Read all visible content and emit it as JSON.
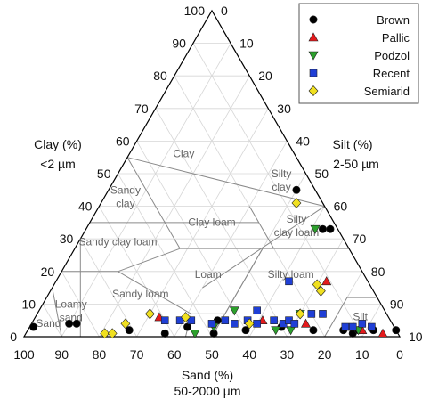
{
  "chart_data": {
    "type": "scatter",
    "subtype": "ternary-soil-texture",
    "title": "",
    "axes": {
      "clay": {
        "label": "Clay (%)",
        "sublabel": "<2 µm",
        "range": [
          0,
          100
        ]
      },
      "silt": {
        "label": "Silt (%)",
        "sublabel": "2-50 µm",
        "range": [
          0,
          100
        ]
      },
      "sand": {
        "label": "Sand (%)",
        "sublabel": "50-2000 µm",
        "range": [
          0,
          100
        ]
      }
    },
    "ticks": [
      "0",
      "10",
      "20",
      "30",
      "40",
      "50",
      "60",
      "70",
      "80",
      "90",
      "100"
    ],
    "grid": true,
    "legend_position": "top-right",
    "texture_classes": [
      "Clay",
      "Sandy clay",
      "Silty clay",
      "Silty clay loam",
      "Clay loam",
      "Sandy clay loam",
      "Loam",
      "Silty loam",
      "Sandy loam",
      "Loamy sand",
      "Sand",
      "Silt"
    ],
    "class_label_text": {
      "Clay": "Clay",
      "Sandy clay": [
        "Sandy",
        "clay"
      ],
      "Silty clay": [
        "Silty",
        "clay"
      ],
      "Silty clay loam": [
        "Silty",
        "clay loam"
      ],
      "Clay loam": "Clay loam",
      "Sandy clay loam": "Sandy clay loam",
      "Loam": "Loam",
      "Silty loam": "Silty loam",
      "Sandy loam": "Sandy loam",
      "Loamy sand": [
        "Loamy",
        "sand"
      ],
      "Sand": "Sand",
      "Silt": "Silt"
    },
    "series": [
      {
        "name": "Brown",
        "marker": "circle",
        "color": "#000000",
        "points": [
          {
            "sand": 96,
            "silt": 1,
            "clay": 3
          },
          {
            "sand": 86,
            "silt": 10,
            "clay": 4
          },
          {
            "sand": 84,
            "silt": 12,
            "clay": 4
          },
          {
            "sand": 71,
            "silt": 27,
            "clay": 2
          },
          {
            "sand": 62,
            "silt": 37,
            "clay": 1
          },
          {
            "sand": 55,
            "silt": 42,
            "clay": 3
          },
          {
            "sand": 49,
            "silt": 50,
            "clay": 1
          },
          {
            "sand": 46,
            "silt": 49,
            "clay": 5
          },
          {
            "sand": 40,
            "silt": 58,
            "clay": 2
          },
          {
            "sand": 30,
            "silt": 67,
            "clay": 3
          },
          {
            "sand": 22,
            "silt": 76,
            "clay": 2
          },
          {
            "sand": 14,
            "silt": 84,
            "clay": 2
          },
          {
            "sand": 12,
            "silt": 87,
            "clay": 1
          },
          {
            "sand": 10,
            "silt": 88,
            "clay": 2
          },
          {
            "sand": 6,
            "silt": 92,
            "clay": 2
          },
          {
            "sand": 0,
            "silt": 98,
            "clay": 2
          },
          {
            "sand": 5,
            "silt": 50,
            "clay": 45
          },
          {
            "sand": 4,
            "silt": 63,
            "clay": 33
          },
          {
            "sand": 2,
            "silt": 65,
            "clay": 33
          }
        ]
      },
      {
        "name": "Pallic",
        "marker": "triangle-up",
        "color": "#e41a1c",
        "points": [
          {
            "sand": 61,
            "silt": 33,
            "clay": 6
          },
          {
            "sand": 34,
            "silt": 61,
            "clay": 5
          },
          {
            "sand": 23,
            "silt": 73,
            "clay": 4
          },
          {
            "sand": 11,
            "silt": 72,
            "clay": 17
          },
          {
            "sand": 9,
            "silt": 89,
            "clay": 2
          },
          {
            "sand": 4,
            "silt": 95,
            "clay": 1
          }
        ]
      },
      {
        "name": "Podzol",
        "marker": "triangle-down",
        "color": "#2ca02c",
        "points": [
          {
            "sand": 54,
            "silt": 45,
            "clay": 1
          },
          {
            "sand": 48,
            "silt": 49,
            "clay": 3
          },
          {
            "sand": 40,
            "silt": 52,
            "clay": 8
          },
          {
            "sand": 32,
            "silt": 66,
            "clay": 2
          },
          {
            "sand": 28,
            "silt": 70,
            "clay": 2
          },
          {
            "sand": 23,
            "silt": 70,
            "clay": 7
          },
          {
            "sand": 10,
            "silt": 88,
            "clay": 2
          },
          {
            "sand": 6,
            "silt": 61,
            "clay": 33
          }
        ]
      },
      {
        "name": "Recent",
        "marker": "square",
        "color": "#1f3fd6",
        "points": [
          {
            "sand": 60,
            "silt": 35,
            "clay": 5
          },
          {
            "sand": 56,
            "silt": 39,
            "clay": 5
          },
          {
            "sand": 53,
            "silt": 42,
            "clay": 5
          },
          {
            "sand": 48,
            "silt": 48,
            "clay": 4
          },
          {
            "sand": 44,
            "silt": 51,
            "clay": 5
          },
          {
            "sand": 42,
            "silt": 54,
            "clay": 4
          },
          {
            "sand": 38,
            "silt": 57,
            "clay": 5
          },
          {
            "sand": 36,
            "silt": 60,
            "clay": 4
          },
          {
            "sand": 34,
            "silt": 58,
            "clay": 8
          },
          {
            "sand": 31,
            "silt": 64,
            "clay": 5
          },
          {
            "sand": 29,
            "silt": 67,
            "clay": 4
          },
          {
            "sand": 27,
            "silt": 68,
            "clay": 5
          },
          {
            "sand": 26,
            "silt": 70,
            "clay": 4
          },
          {
            "sand": 21,
            "silt": 62,
            "clay": 17
          },
          {
            "sand": 20,
            "silt": 73,
            "clay": 7
          },
          {
            "sand": 17,
            "silt": 76,
            "clay": 7
          },
          {
            "sand": 13,
            "silt": 84,
            "clay": 3
          },
          {
            "sand": 11,
            "silt": 86,
            "clay": 3
          },
          {
            "sand": 8,
            "silt": 88,
            "clay": 4
          },
          {
            "sand": 6,
            "silt": 91,
            "clay": 3
          }
        ]
      },
      {
        "name": "Semiarid",
        "marker": "diamond",
        "color": "#f0e020",
        "points": [
          {
            "sand": 78,
            "silt": 21,
            "clay": 1
          },
          {
            "sand": 76,
            "silt": 23,
            "clay": 1
          },
          {
            "sand": 71,
            "silt": 25,
            "clay": 4
          },
          {
            "sand": 63,
            "silt": 30,
            "clay": 7
          },
          {
            "sand": 54,
            "silt": 40,
            "clay": 6
          },
          {
            "sand": 38,
            "silt": 58,
            "clay": 4
          },
          {
            "sand": 23,
            "silt": 70,
            "clay": 7
          },
          {
            "sand": 14,
            "silt": 72,
            "clay": 14
          },
          {
            "sand": 14,
            "silt": 70,
            "clay": 16
          },
          {
            "sand": 7,
            "silt": 52,
            "clay": 41
          }
        ]
      }
    ]
  }
}
